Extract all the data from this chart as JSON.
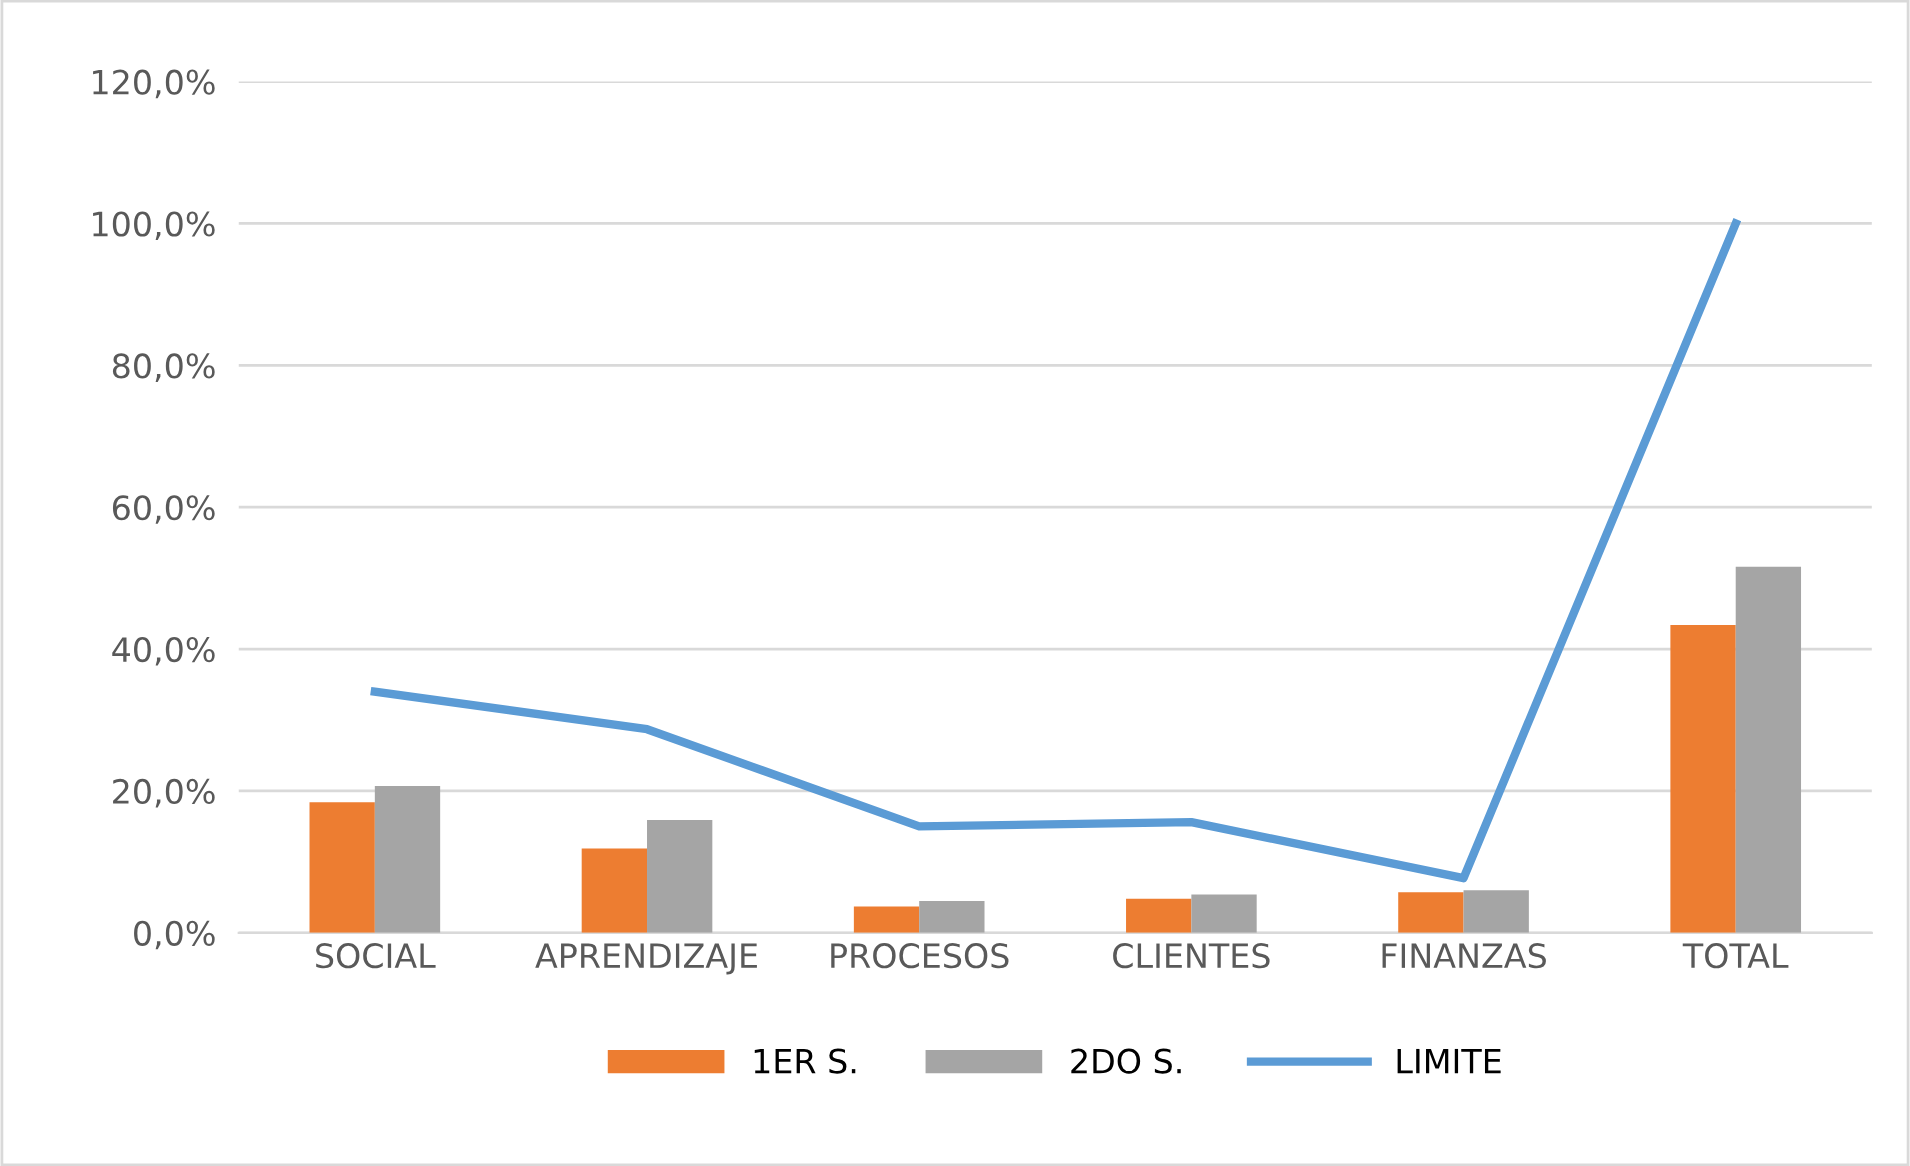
{
  "chart_data": {
    "type": "bar",
    "categories": [
      "SOCIAL",
      "APRENDIZAJE",
      "PROCESOS",
      "CLIENTES",
      "FINANZAS",
      "TOTAL"
    ],
    "series": [
      {
        "name": "1ER S.",
        "color": "#ed7d31",
        "values": [
          18.4,
          11.9,
          3.7,
          4.8,
          5.7,
          43.4
        ]
      },
      {
        "name": "2DO S.",
        "color": "#a5a5a5",
        "values": [
          20.7,
          15.9,
          4.5,
          5.4,
          6.0,
          51.6
        ]
      },
      {
        "name": "LIMITE",
        "type": "line",
        "color": "#5b9bd5",
        "values": [
          34.0,
          28.7,
          15.0,
          15.6,
          7.7,
          100.0
        ]
      }
    ],
    "ylim": [
      0,
      120
    ],
    "yticks": [
      {
        "value": 0,
        "label": "0,0%"
      },
      {
        "value": 20,
        "label": "20,0%"
      },
      {
        "value": 40,
        "label": "40,0%"
      },
      {
        "value": 60,
        "label": "60,0%"
      },
      {
        "value": 80,
        "label": "80,0%"
      },
      {
        "value": 100,
        "label": "100,0%"
      },
      {
        "value": 120,
        "label": "120,0%"
      }
    ],
    "grid": "y",
    "legend": "bottom"
  }
}
